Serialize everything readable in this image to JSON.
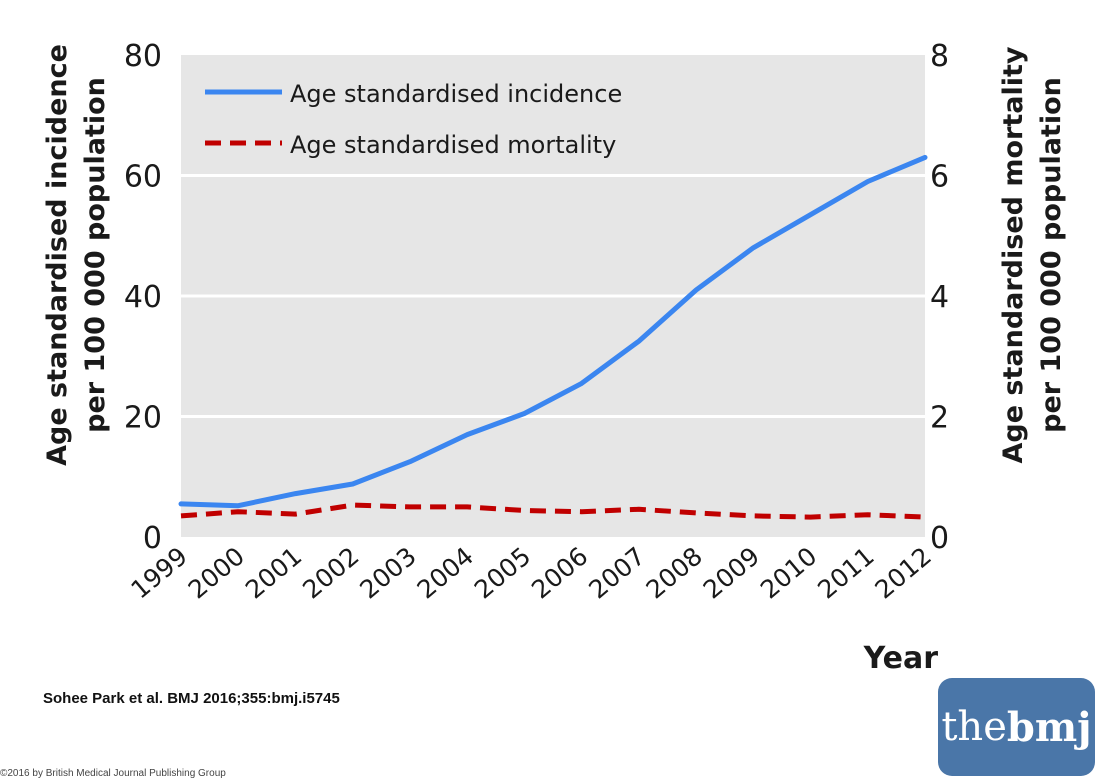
{
  "chart_data": {
    "type": "line",
    "x": [
      1999,
      2000,
      2001,
      2002,
      2003,
      2004,
      2005,
      2006,
      2007,
      2008,
      2009,
      2010,
      2011,
      2012
    ],
    "x_tick_labels": [
      "1999",
      "2000",
      "2001",
      "2002",
      "2003",
      "2004",
      "2005",
      "2006",
      "2007",
      "2008",
      "2009",
      "2010",
      "2011",
      "2012"
    ],
    "series": [
      {
        "name": "Age standardised incidence",
        "axis": "left",
        "color": "#3b86f0",
        "style": "solid",
        "values": [
          5.5,
          5.2,
          7.2,
          8.8,
          12.5,
          17.0,
          20.5,
          25.5,
          32.5,
          41.0,
          48.0,
          53.5,
          59.0,
          63.0
        ]
      },
      {
        "name": "Age standardised mortality",
        "axis": "right",
        "color": "#c00000",
        "style": "dashed",
        "values": [
          0.35,
          0.42,
          0.38,
          0.53,
          0.5,
          0.5,
          0.44,
          0.42,
          0.46,
          0.4,
          0.35,
          0.33,
          0.37,
          0.33
        ]
      }
    ],
    "y_left": {
      "label_line1": "Age standardised incidence",
      "label_line2": "per 100 000 population",
      "range": [
        0,
        80
      ],
      "ticks": [
        0,
        20,
        40,
        60,
        80
      ]
    },
    "y_right": {
      "label_line1": "Age standardised mortality",
      "label_line2": "per 100 000 population",
      "range": [
        0,
        8
      ],
      "ticks": [
        0,
        2,
        4,
        6,
        8
      ]
    },
    "xlabel": "Year",
    "legend_position": "top-left",
    "grid": true,
    "background": "#e6e6e6"
  },
  "citation": "Sohee Park et al. BMJ 2016;355:bmj.i5745",
  "copyright": "©2016 by British Medical Journal Publishing Group",
  "logo": {
    "light": "the",
    "bold": "bmj",
    "color": "#4a76a8"
  }
}
